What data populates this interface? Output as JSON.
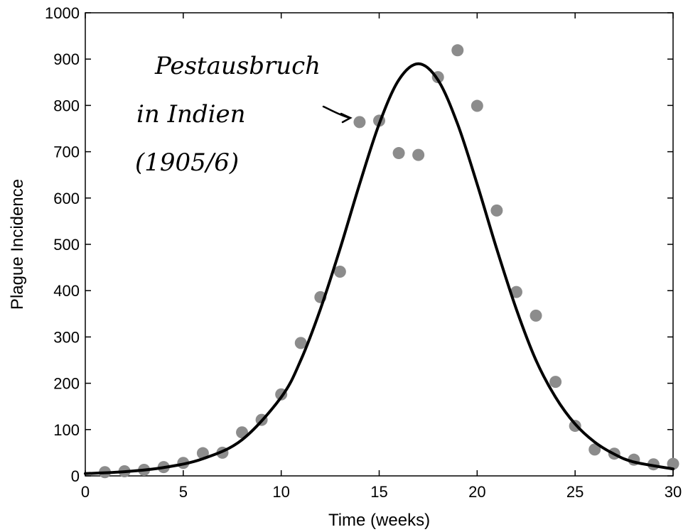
{
  "chart_data": {
    "type": "scatter",
    "xlabel": "Time (weeks)",
    "ylabel": "Plague Incidence",
    "xlim": [
      0,
      30
    ],
    "ylim": [
      0,
      1000
    ],
    "xticks": [
      0,
      5,
      10,
      15,
      20,
      25,
      30
    ],
    "yticks": [
      0,
      100,
      200,
      300,
      400,
      500,
      600,
      700,
      800,
      900,
      1000
    ],
    "grid": false,
    "colors": {
      "points": "#8c8c8c",
      "curve": "#000000"
    },
    "series": [
      {
        "kind": "points",
        "x": [
          1,
          2,
          3,
          4,
          5,
          6,
          7,
          8,
          9,
          10,
          11,
          12,
          13,
          14,
          15,
          16,
          17,
          18,
          19,
          20,
          21,
          22,
          23,
          24,
          25,
          26,
          27,
          28,
          29,
          30
        ],
        "y": [
          8,
          10,
          13,
          19,
          28,
          49,
          50,
          94,
          121,
          176,
          287,
          386,
          441,
          764,
          767,
          697,
          693,
          861,
          919,
          799,
          573,
          397,
          346,
          203,
          108,
          57,
          48,
          35,
          25,
          26
        ]
      },
      {
        "kind": "fit-curve",
        "peak_x": 17,
        "peak_y": 890,
        "x": [
          0,
          2,
          4,
          6,
          8,
          10,
          11,
          12,
          13,
          14,
          15,
          16,
          17,
          18,
          19,
          20,
          21,
          22,
          23,
          24,
          25,
          26,
          27,
          28,
          30
        ],
        "y": [
          5,
          9,
          18,
          37,
          78,
          170,
          250,
          360,
          490,
          630,
          760,
          855,
          890,
          855,
          760,
          630,
          490,
          360,
          250,
          170,
          112,
          73,
          47,
          30,
          15
        ]
      }
    ],
    "annotation": {
      "lines": [
        "Pestausbruch",
        "in Indien",
        "(1905/6)"
      ],
      "target_x": 14,
      "target_y": 764
    }
  }
}
